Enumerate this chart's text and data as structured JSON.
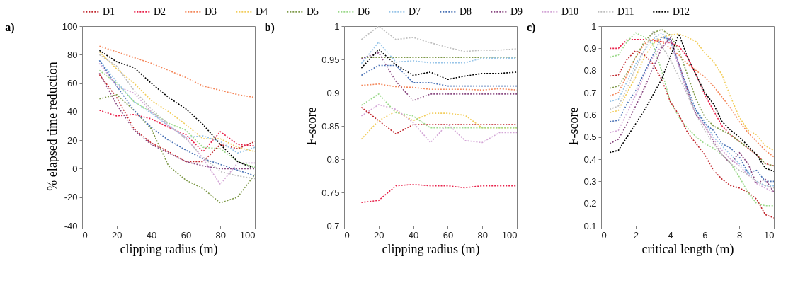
{
  "chart_data": [
    {
      "type": "line",
      "title": "a)",
      "xlabel": "clipping radius (m)",
      "ylabel": "% elapsed time reduction",
      "x": [
        10,
        20,
        30,
        40,
        50,
        60,
        70,
        80,
        90,
        100
      ],
      "xlim": [
        0,
        100
      ],
      "xticks": [
        0,
        20,
        40,
        60,
        80,
        100
      ],
      "ylim": [
        -40,
        100
      ],
      "yticks": [
        -40,
        -20,
        0,
        20,
        40,
        60,
        80,
        100
      ],
      "line_style": "dotted",
      "legend": "top",
      "series": [
        {
          "name": "D1",
          "color": "#c0272d",
          "values": [
            66,
            50,
            28,
            18,
            12,
            5,
            5,
            17,
            14,
            19
          ]
        },
        {
          "name": "D2",
          "color": "#e8214a",
          "values": [
            41,
            37,
            38,
            35,
            29,
            24,
            12,
            26,
            17,
            16
          ]
        },
        {
          "name": "D3",
          "color": "#f4875a",
          "values": [
            86,
            82,
            78,
            74,
            69,
            64,
            58,
            55,
            52,
            50
          ]
        },
        {
          "name": "D4",
          "color": "#f2cd5c",
          "values": [
            82,
            70,
            60,
            48,
            40,
            31,
            21,
            21,
            15,
            12
          ]
        },
        {
          "name": "D5",
          "color": "#7f9a4a",
          "values": [
            49,
            52,
            41,
            28,
            2,
            -8,
            -14,
            -24,
            -20,
            -4
          ]
        },
        {
          "name": "D6",
          "color": "#9bd98a",
          "values": [
            69,
            60,
            47,
            40,
            32,
            27,
            15,
            14,
            5,
            1
          ]
        },
        {
          "name": "D7",
          "color": "#96c4e8",
          "values": [
            76,
            61,
            47,
            39,
            30,
            22,
            23,
            19,
            11,
            15
          ]
        },
        {
          "name": "D8",
          "color": "#4a72b5",
          "values": [
            76,
            58,
            41,
            29,
            20,
            13,
            7,
            3,
            -1,
            -5
          ]
        },
        {
          "name": "D9",
          "color": "#8a4a82",
          "values": [
            67,
            45,
            27,
            17,
            11,
            5,
            2,
            0,
            0,
            0
          ]
        },
        {
          "name": "D10",
          "color": "#d3a5d6",
          "values": [
            74,
            58,
            53,
            40,
            30,
            22,
            7,
            -11,
            4,
            4
          ]
        },
        {
          "name": "D11",
          "color": "#bdbdbd",
          "values": [
            80,
            72,
            55,
            42,
            31,
            21,
            8,
            -2,
            -5,
            -7
          ]
        },
        {
          "name": "D12",
          "color": "#000000",
          "values": [
            83,
            75,
            71,
            60,
            50,
            42,
            31,
            17,
            5,
            0
          ]
        }
      ]
    },
    {
      "type": "line",
      "title": "b)",
      "xlabel": "clipping radius (m)",
      "ylabel": "F-score",
      "x": [
        10,
        20,
        30,
        40,
        50,
        60,
        70,
        80,
        90,
        100
      ],
      "xlim": [
        0,
        100
      ],
      "xticks": [
        0,
        20,
        40,
        60,
        80,
        100
      ],
      "ylim": [
        0.7,
        1
      ],
      "yticks": [
        0.7,
        0.75,
        0.8,
        0.85,
        0.9,
        0.95,
        1
      ],
      "line_style": "dotted",
      "legend": "top",
      "series": [
        {
          "name": "D1",
          "color": "#c0272d",
          "values": [
            0.878,
            0.858,
            0.838,
            0.852,
            0.852,
            0.852,
            0.852,
            0.852,
            0.852,
            0.852
          ]
        },
        {
          "name": "D2",
          "color": "#e8214a",
          "values": [
            0.735,
            0.738,
            0.76,
            0.762,
            0.76,
            0.76,
            0.757,
            0.76,
            0.76,
            0.76
          ]
        },
        {
          "name": "D3",
          "color": "#f4875a",
          "values": [
            0.911,
            0.913,
            0.909,
            0.908,
            0.905,
            0.905,
            0.905,
            0.904,
            0.906,
            0.904
          ]
        },
        {
          "name": "D4",
          "color": "#f2cd5c",
          "values": [
            0.83,
            0.858,
            0.872,
            0.858,
            0.869,
            0.869,
            0.866,
            0.847,
            0.847,
            0.847
          ]
        },
        {
          "name": "D5",
          "color": "#7f9a4a",
          "values": [
            0.953,
            0.953,
            0.953,
            0.953,
            0.953,
            0.953,
            0.953,
            0.953,
            0.953,
            0.953
          ]
        },
        {
          "name": "D6",
          "color": "#9bd98a",
          "values": [
            0.881,
            0.898,
            0.87,
            0.865,
            0.847,
            0.847,
            0.847,
            0.847,
            0.847,
            0.847
          ]
        },
        {
          "name": "D7",
          "color": "#96c4e8",
          "values": [
            0.944,
            0.976,
            0.946,
            0.948,
            0.945,
            0.945,
            0.945,
            0.952,
            0.952,
            0.952
          ]
        },
        {
          "name": "D8",
          "color": "#4a72b5",
          "values": [
            0.926,
            0.941,
            0.941,
            0.915,
            0.915,
            0.91,
            0.91,
            0.91,
            0.91,
            0.91
          ]
        },
        {
          "name": "D9",
          "color": "#8a4a82",
          "values": [
            0.951,
            0.96,
            0.917,
            0.888,
            0.898,
            0.898,
            0.898,
            0.898,
            0.898,
            0.898
          ]
        },
        {
          "name": "D10",
          "color": "#d3a5d6",
          "values": [
            0.865,
            0.882,
            0.875,
            0.855,
            0.825,
            0.853,
            0.828,
            0.825,
            0.84,
            0.84
          ]
        },
        {
          "name": "D11",
          "color": "#bdbdbd",
          "values": [
            0.98,
            1.0,
            0.98,
            0.983,
            0.975,
            0.968,
            0.962,
            0.964,
            0.964,
            0.966
          ]
        },
        {
          "name": "D12",
          "color": "#000000",
          "values": [
            0.937,
            0.965,
            0.942,
            0.926,
            0.931,
            0.92,
            0.925,
            0.929,
            0.929,
            0.931
          ]
        }
      ]
    },
    {
      "type": "line",
      "title": "c)",
      "xlabel": "critical length (m)",
      "ylabel": "F-score",
      "x": [
        0.5,
        1,
        1.5,
        2,
        2.5,
        3,
        3.5,
        4,
        4.5,
        5,
        5.5,
        6,
        6.5,
        7,
        7.5,
        8,
        8.5,
        9,
        9.5,
        10
      ],
      "xlim": [
        0,
        10
      ],
      "xticks": [
        0,
        2,
        4,
        6,
        8,
        10
      ],
      "ylim": [
        0.1,
        1
      ],
      "yticks": [
        0.1,
        0.2,
        0.3,
        0.4,
        0.5,
        0.6,
        0.7,
        0.8,
        0.9,
        1
      ],
      "line_style": "dotted",
      "legend": "top",
      "series": [
        {
          "name": "D1",
          "color": "#c0272d",
          "values": [
            0.775,
            0.78,
            0.85,
            0.89,
            0.87,
            0.83,
            0.76,
            0.66,
            0.6,
            0.52,
            0.47,
            0.42,
            0.35,
            0.31,
            0.28,
            0.27,
            0.25,
            0.22,
            0.15,
            0.135
          ]
        },
        {
          "name": "D2",
          "color": "#e8214a",
          "values": [
            0.9,
            0.9,
            0.94,
            0.94,
            0.94,
            0.935,
            0.93,
            0.925,
            0.91,
            0.86,
            0.78,
            0.69,
            0.62,
            0.55,
            0.51,
            0.48,
            0.45,
            0.42,
            0.38,
            0.37
          ]
        },
        {
          "name": "D3",
          "color": "#f4875a",
          "values": [
            0.685,
            0.7,
            0.78,
            0.86,
            0.92,
            0.94,
            0.93,
            0.9,
            0.87,
            0.83,
            0.8,
            0.77,
            0.73,
            0.68,
            0.63,
            0.57,
            0.52,
            0.48,
            0.44,
            0.41
          ]
        },
        {
          "name": "D4",
          "color": "#f2cd5c",
          "values": [
            0.61,
            0.62,
            0.7,
            0.77,
            0.86,
            0.92,
            0.95,
            0.96,
            0.965,
            0.95,
            0.93,
            0.88,
            0.84,
            0.78,
            0.68,
            0.59,
            0.53,
            0.51,
            0.46,
            0.44
          ]
        },
        {
          "name": "D5",
          "color": "#7f9a4a",
          "values": [
            0.72,
            0.73,
            0.79,
            0.86,
            0.93,
            0.97,
            0.985,
            0.96,
            0.89,
            0.78,
            0.67,
            0.59,
            0.55,
            0.53,
            0.51,
            0.48,
            0.45,
            0.42,
            0.38,
            0.37
          ]
        },
        {
          "name": "D6",
          "color": "#9bd98a",
          "values": [
            0.86,
            0.87,
            0.93,
            0.97,
            0.95,
            0.92,
            0.8,
            0.66,
            0.59,
            0.54,
            0.5,
            0.47,
            0.45,
            0.42,
            0.38,
            0.32,
            0.25,
            0.2,
            0.19,
            0.19
          ]
        },
        {
          "name": "D7",
          "color": "#96c4e8",
          "values": [
            0.66,
            0.67,
            0.75,
            0.83,
            0.89,
            0.94,
            0.97,
            0.93,
            0.82,
            0.7,
            0.62,
            0.57,
            0.5,
            0.46,
            0.42,
            0.38,
            0.34,
            0.3,
            0.28,
            0.28
          ]
        },
        {
          "name": "D8",
          "color": "#4a72b5",
          "values": [
            0.57,
            0.575,
            0.65,
            0.71,
            0.79,
            0.87,
            0.95,
            0.94,
            0.83,
            0.72,
            0.62,
            0.56,
            0.53,
            0.47,
            0.45,
            0.41,
            0.34,
            0.35,
            0.3,
            0.3
          ]
        },
        {
          "name": "D9",
          "color": "#8a4a82",
          "values": [
            0.47,
            0.49,
            0.56,
            0.64,
            0.72,
            0.81,
            0.9,
            0.95,
            0.83,
            0.71,
            0.6,
            0.55,
            0.48,
            0.42,
            0.38,
            0.43,
            0.38,
            0.29,
            0.31,
            0.25
          ]
        },
        {
          "name": "D10",
          "color": "#d3a5d6",
          "values": [
            0.52,
            0.53,
            0.61,
            0.69,
            0.78,
            0.86,
            0.91,
            0.93,
            0.82,
            0.69,
            0.6,
            0.55,
            0.49,
            0.44,
            0.4,
            0.37,
            0.33,
            0.29,
            0.27,
            0.25
          ]
        },
        {
          "name": "D11",
          "color": "#bdbdbd",
          "values": [
            0.625,
            0.64,
            0.72,
            0.81,
            0.89,
            0.975,
            0.91,
            0.85,
            0.77,
            0.69,
            0.6,
            0.53,
            0.47,
            0.42,
            0.38,
            0.35,
            0.33,
            0.3,
            0.28,
            0.27
          ]
        },
        {
          "name": "D12",
          "color": "#000000",
          "values": [
            0.43,
            0.44,
            0.5,
            0.56,
            0.62,
            0.69,
            0.76,
            0.86,
            0.965,
            0.86,
            0.78,
            0.7,
            0.65,
            0.57,
            0.53,
            0.5,
            0.46,
            0.42,
            0.36,
            0.345
          ]
        }
      ]
    }
  ]
}
